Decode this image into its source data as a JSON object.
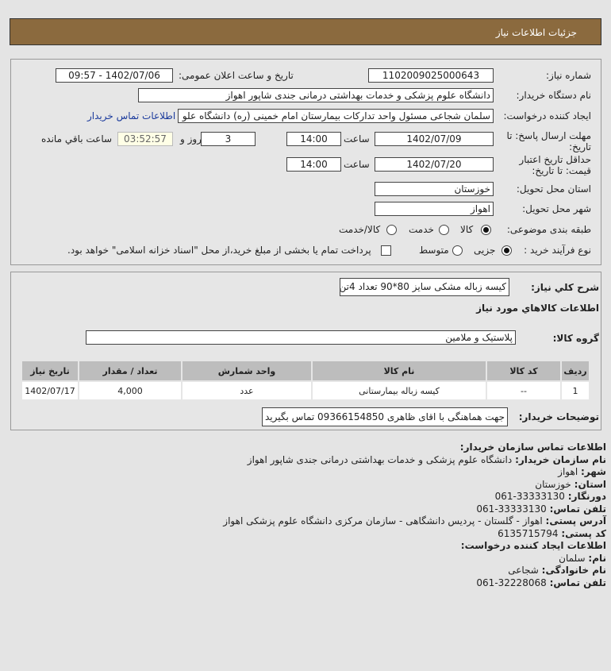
{
  "header": {
    "title": "جزئیات اطلاعات نیاز"
  },
  "form": {
    "need_number_label": "شماره نیاز:",
    "need_number": "1102009025000643",
    "announce_label": "تاریخ و ساعت اعلان عمومی:",
    "announce_value": "1402/07/06 - 09:57",
    "buyer_label": "نام دستگاه خریدار:",
    "buyer_value": "دانشگاه علوم پزشکی و خدمات بهداشتی درمانی جندی شاپور اهواز",
    "creator_label": "ایجاد کننده درخواست:",
    "creator_value": "سلمان شجاعی مسئول واحد تدارکات بیمارستان امام خمینی (ره) دانشگاه علو",
    "contact_link": "اطلاعات تماس خریدار",
    "deadline_label": "مهلت ارسال پاسخ: تا تاریخ:",
    "deadline_date": "1402/07/09",
    "time_label": "ساعت",
    "deadline_time": "14:00",
    "days": "3",
    "days_label": "روز و",
    "remaining": "03:52:57",
    "remaining_label": "ساعت باقي مانده",
    "validity_label": "حداقل تاریخ اعتبار قیمت: تا تاریخ:",
    "validity_date": "1402/07/20",
    "validity_time": "14:00",
    "province_label": "استان محل تحویل:",
    "province": "خوزستان",
    "city_label": "شهر محل تحویل:",
    "city": "اهواز",
    "category_label": "طبقه بندی موضوعی:",
    "category_options": [
      {
        "label": "کالا",
        "selected": true
      },
      {
        "label": "خدمت",
        "selected": false
      },
      {
        "label": "کالا/خدمت",
        "selected": false
      }
    ],
    "process_label": "نوع فرآیند خرید :",
    "process_options": [
      {
        "label": "جزیی",
        "selected": true
      },
      {
        "label": "متوسط",
        "selected": false
      }
    ],
    "treasury_text": "پرداخت تمام یا بخشی از مبلغ خرید،از محل \"اسناد خزانه اسلامی\" خواهد بود.",
    "treasury_checked": false
  },
  "needs": {
    "summary_label": "شرح كلي نياز:",
    "summary": "کیسه زباله مشکی سایز 80*90 تعداد 4تن",
    "goods_title": "اطلاعات كالاهاي مورد نياز",
    "group_label": "گروه کالا:",
    "group": "پلاستیک و ملامین",
    "columns": [
      "ردیف",
      "کد کالا",
      "نام کالا",
      "واحد شمارش",
      "تعداد / مقدار",
      "تاریخ نیاز"
    ],
    "rows": [
      [
        "1",
        "--",
        "کیسه زباله بیمارستانی",
        "عدد",
        "4,000",
        "1402/07/17"
      ]
    ],
    "buyer_notes_label": "توضیحات خریدار:",
    "buyer_notes": "جهت هماهنگی با اقای ظاهری 09366154850 تماس بگیرید"
  },
  "contact": {
    "title": "اطلاعات تماس سازمان خریدار:",
    "lines": [
      {
        "k": "نام سازمان خریدار:",
        "v": "دانشگاه علوم پزشکی و خدمات بهداشتی درمانی جندی شاپور اهواز"
      },
      {
        "k": "شهر:",
        "v": "اهواز"
      },
      {
        "k": "استان:",
        "v": "خوزستان"
      },
      {
        "k": "دورنگار:",
        "v": "33333130-061"
      },
      {
        "k": "تلفن تماس:",
        "v": "33333130-061"
      },
      {
        "k": "آدرس پستی:",
        "v": "اهواز - گلستان - پردیس دانشگاهی - سازمان مرکزی دانشگاه علوم پزشکی اهواز"
      },
      {
        "k": "کد پستی:",
        "v": "6135715794"
      }
    ],
    "creator_title": "اطلاعات ایجاد کننده درخواست:",
    "creator_lines": [
      {
        "k": "نام:",
        "v": "سلمان"
      },
      {
        "k": "نام خانوادگی:",
        "v": "شجاعی"
      },
      {
        "k": "تلفن تماس:",
        "v": "32228068-061"
      }
    ]
  }
}
